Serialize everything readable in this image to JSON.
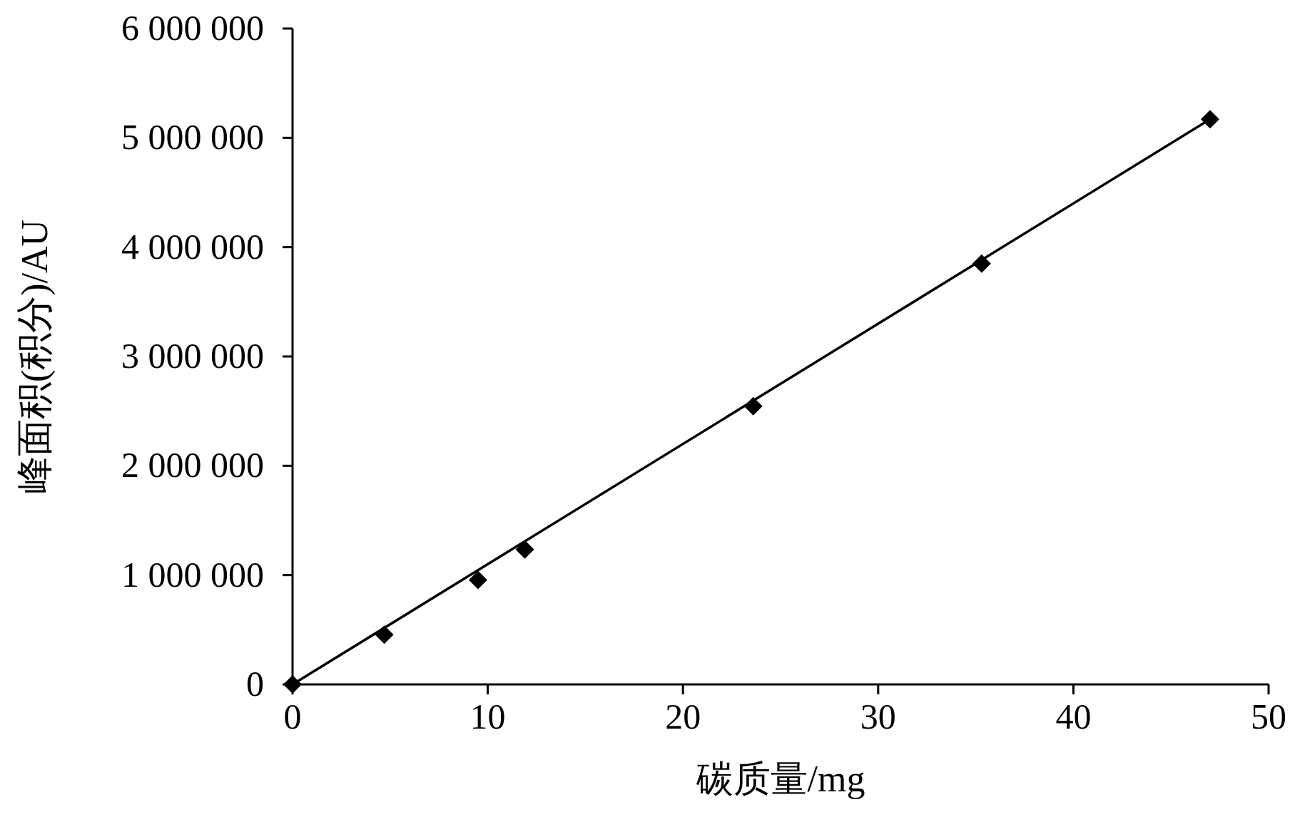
{
  "chart_data": {
    "type": "scatter",
    "xlabel": "碳质量/mg",
    "ylabel": "峰面积(积分)/AU",
    "xlim": [
      0,
      50
    ],
    "xticks": [
      0,
      10,
      20,
      30,
      40,
      50
    ],
    "ylim": [
      0,
      6000000
    ],
    "yticks": [
      0,
      {
        "value": 1000000,
        "label": "1 000 000"
      },
      {
        "value": 2000000,
        "label": "2 000 000"
      },
      {
        "value": 3000000,
        "label": "3 000 000"
      },
      {
        "value": 4000000,
        "label": "4 000 000"
      },
      {
        "value": 5000000,
        "label": "5 000 000"
      },
      {
        "value": 6000000,
        "label": "6 000 000"
      }
    ],
    "series": [
      {
        "type": "line",
        "color": "#000000",
        "marker": "none",
        "line_style": "solid",
        "x": [
          0,
          47.0
        ],
        "values": [
          0,
          5170000
        ]
      },
      {
        "color": "#000000",
        "marker": "diamond",
        "x": [
          0,
          4.7,
          9.5,
          11.9,
          23.6,
          35.3,
          47.0
        ],
        "values": [
          0,
          455000,
          955000,
          1235000,
          2545000,
          3850000,
          5170000
        ]
      }
    ]
  }
}
